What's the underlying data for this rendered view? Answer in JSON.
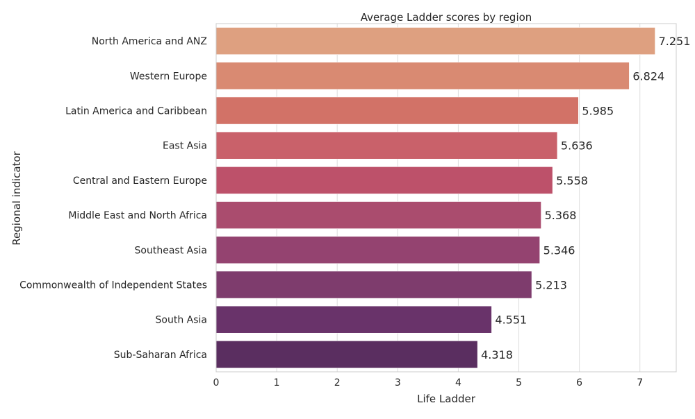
{
  "chart_data": {
    "type": "bar",
    "orientation": "horizontal",
    "title": "Average Ladder scores by region",
    "xlabel": "Life Ladder",
    "ylabel": "Regional indicator",
    "xlim": [
      0,
      7.6
    ],
    "xticks": [
      0,
      1,
      2,
      3,
      4,
      5,
      6,
      7
    ],
    "grid": true,
    "categories": [
      "North America and ANZ",
      "Western Europe",
      "Latin America and Caribbean",
      "East Asia",
      "Central and Eastern Europe",
      "Middle East and North Africa",
      "Southeast Asia",
      "Commonwealth of Independent States",
      "South Asia",
      "Sub-Saharan Africa"
    ],
    "values": [
      7.251,
      6.824,
      5.985,
      5.636,
      5.558,
      5.368,
      5.346,
      5.213,
      4.551,
      4.318
    ],
    "data_labels": [
      "7.251",
      "6.824",
      "5.985",
      "5.636",
      "5.558",
      "5.368",
      "5.346",
      "5.213",
      "4.551",
      "4.318"
    ],
    "colors": [
      "#dea080",
      "#d98a72",
      "#d27267",
      "#c9616a",
      "#bd516a",
      "#aa4c6e",
      "#944370",
      "#7e3c6d",
      "#69336a",
      "#5a2e60"
    ]
  }
}
